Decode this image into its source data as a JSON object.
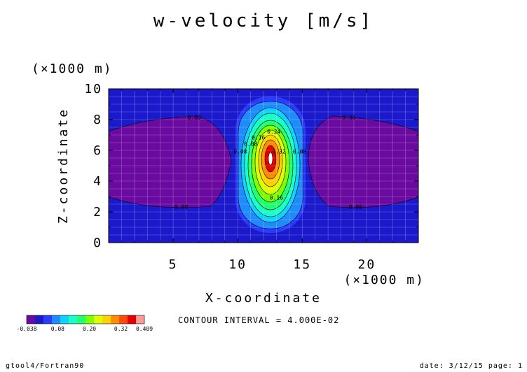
{
  "chart_data": {
    "type": "heatmap",
    "title": "w-velocity [m/s]",
    "xlabel": "X-coordinate",
    "ylabel": "Z-coordinate",
    "x_unit": "(×1000 m)",
    "y_unit": "(×1000 m)",
    "xlim": [
      0,
      24
    ],
    "ylim": [
      0,
      10
    ],
    "x_ticks": [
      5,
      10,
      15,
      20
    ],
    "y_ticks": [
      0,
      2,
      4,
      6,
      8,
      10
    ],
    "grid": true,
    "contour_interval_text": "CONTOUR INTERVAL = 4.000E-02",
    "contour_labels": [
      {
        "x": 6.5,
        "z": 8.0,
        "text": "-0.00"
      },
      {
        "x": 18.5,
        "z": 8.0,
        "text": "-0.00"
      },
      {
        "x": 5.5,
        "z": 2.2,
        "text": "-0.00"
      },
      {
        "x": 19.0,
        "z": 2.2,
        "text": "-0.00"
      },
      {
        "x": 12.8,
        "z": 7.1,
        "text": "0.24"
      },
      {
        "x": 11.6,
        "z": 6.7,
        "text": "0.16"
      },
      {
        "x": 11.0,
        "z": 6.3,
        "text": "0.08"
      },
      {
        "x": 10.2,
        "z": 5.8,
        "text": "0.08"
      },
      {
        "x": 14.8,
        "z": 5.8,
        "text": "0.08"
      },
      {
        "x": 13.2,
        "z": 5.8,
        "text": "0.32"
      },
      {
        "x": 13.0,
        "z": 2.8,
        "text": "0.16"
      }
    ],
    "colorbar": {
      "colors": [
        "#6a0aa0",
        "#1a1acc",
        "#2a3cff",
        "#1e8cff",
        "#10d2ff",
        "#18ffc8",
        "#20ff70",
        "#7cff00",
        "#dcff00",
        "#ffd200",
        "#ff8c00",
        "#ff4a0a",
        "#e60000",
        "#ff9a9a"
      ],
      "tick_labels": [
        "-0.038",
        "0.08",
        "0.20",
        "0.32",
        "0.409"
      ]
    },
    "levels": [
      -0.038,
      0.0,
      0.04,
      0.08,
      0.12,
      0.16,
      0.2,
      0.24,
      0.28,
      0.32,
      0.36,
      0.4,
      0.409
    ]
  },
  "footer": {
    "left": "gtool4/Fortran90",
    "right": "date: 3/12/15 page: 1"
  }
}
